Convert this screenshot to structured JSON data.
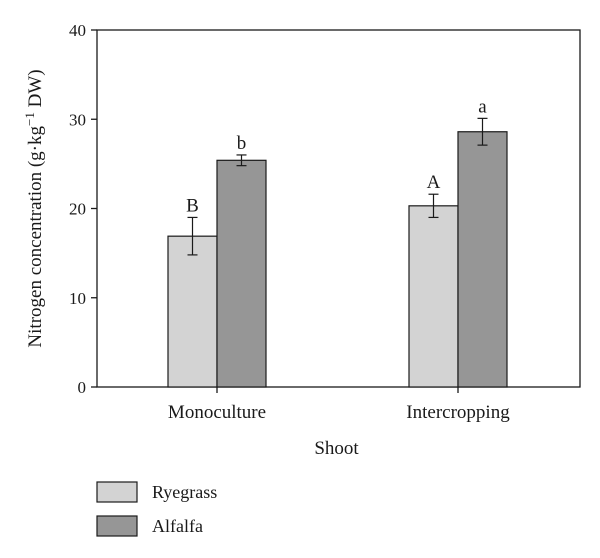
{
  "chart_data": {
    "type": "bar",
    "title": "",
    "xlabel": "Shoot",
    "ylabel": {
      "prefix": "Nitrogen concentration (g·kg",
      "superscript": "−1",
      "suffix": " DW)"
    },
    "ylim": [
      0,
      40
    ],
    "yticks": [
      0,
      10,
      20,
      30,
      40
    ],
    "categories": [
      "Monoculture",
      "Intercropping"
    ],
    "series": [
      {
        "name": "Ryegrass",
        "color": "#d3d3d3",
        "values": [
          16.9,
          20.3
        ],
        "errors": [
          2.1,
          1.3
        ],
        "significance": [
          "B",
          "A"
        ]
      },
      {
        "name": "Alfalfa",
        "color": "#969696",
        "values": [
          25.4,
          28.6
        ],
        "errors": [
          0.6,
          1.5
        ],
        "significance": [
          "b",
          "a"
        ]
      }
    ],
    "legend": {
      "position": "bottom-left"
    }
  }
}
